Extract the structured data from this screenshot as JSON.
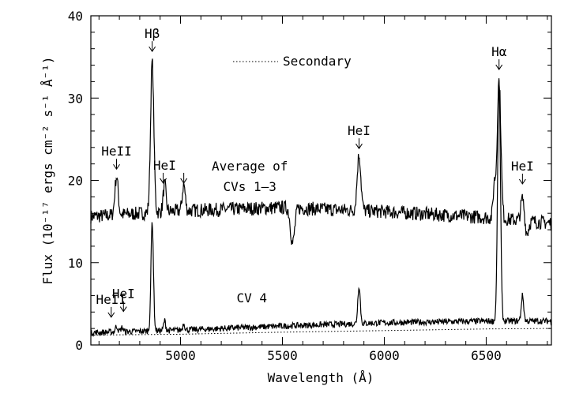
{
  "chart_data": {
    "type": "line",
    "title": "",
    "xlabel": "Wavelength (Å)",
    "ylabel": "Flux (10⁻¹⁷ ergs cm⁻² s⁻¹ Å⁻¹)",
    "xlim": [
      4560,
      6820
    ],
    "ylim": [
      0,
      40
    ],
    "xticks": [
      5000,
      5500,
      6000,
      6500
    ],
    "yticks": [
      0,
      10,
      20,
      30,
      40
    ],
    "grid": false,
    "legend": {
      "position": "top-center",
      "entries": [
        {
          "name": "Secondary",
          "style": "dotted"
        }
      ]
    },
    "continuum": {
      "average": [
        [
          4560,
          15.6
        ],
        [
          5000,
          16.3
        ],
        [
          5500,
          16.7
        ],
        [
          6000,
          16.2
        ],
        [
          6500,
          15.5
        ],
        [
          6820,
          14.8
        ]
      ],
      "cv4": [
        [
          4560,
          1.5
        ],
        [
          5000,
          1.8
        ],
        [
          5500,
          2.3
        ],
        [
          6000,
          2.7
        ],
        [
          6500,
          2.9
        ],
        [
          6820,
          2.9
        ]
      ]
    },
    "series": [
      {
        "name": "Average of CVs 1–3",
        "features": [
          {
            "x": 4686,
            "height": 4.7,
            "width": 8
          },
          {
            "x": 4861,
            "height": 18.3,
            "width": 8
          },
          {
            "x": 4922,
            "height": 3.3,
            "width": 7
          },
          {
            "x": 5016,
            "height": 3.2,
            "width": 7
          },
          {
            "x": 5550,
            "height": -4.3,
            "width": 10
          },
          {
            "x": 5876,
            "height": 6.8,
            "width": 9
          },
          {
            "x": 6540,
            "height": 4.0,
            "width": 6
          },
          {
            "x": 6563,
            "height": 16.8,
            "width": 9
          },
          {
            "x": 6678,
            "height": 2.7,
            "width": 8
          },
          {
            "x": 6700,
            "height": -1.5,
            "width": 8
          }
        ]
      },
      {
        "name": "CV 4",
        "features": [
          {
            "x": 4686,
            "height": 0.7,
            "width": 6
          },
          {
            "x": 4713,
            "height": 0.5,
            "width": 6
          },
          {
            "x": 4861,
            "height": 13.3,
            "width": 6
          },
          {
            "x": 4922,
            "height": 1.2,
            "width": 5
          },
          {
            "x": 5016,
            "height": 0.8,
            "width": 5
          },
          {
            "x": 5876,
            "height": 4.6,
            "width": 6
          },
          {
            "x": 6563,
            "height": 29.0,
            "width": 7
          },
          {
            "x": 6678,
            "height": 3.1,
            "width": 6
          }
        ]
      },
      {
        "name": "Secondary",
        "style": "dotted",
        "points": [
          [
            4560,
            1.2
          ],
          [
            5000,
            1.3
          ],
          [
            5500,
            1.55
          ],
          [
            6000,
            1.75
          ],
          [
            6500,
            1.95
          ],
          [
            6820,
            2.0
          ]
        ]
      }
    ],
    "annotations": [
      {
        "text": "Hβ",
        "x": 4861,
        "y": 37.3,
        "arrow": true
      },
      {
        "text": "Hα",
        "x": 6563,
        "y": 35.1,
        "arrow": true
      },
      {
        "text": "HeII",
        "x": 4686,
        "y": 23.0,
        "arrow": true
      },
      {
        "text": "HeI",
        "x": 4922,
        "y": 21.3,
        "arrow": true,
        "arrow2_x": 5016
      },
      {
        "text": "HeI",
        "x": 5876,
        "y": 25.5,
        "arrow": true
      },
      {
        "text": "HeI",
        "x": 6678,
        "y": 21.2,
        "arrow": true
      },
      {
        "text": "Average of",
        "x": 5340,
        "y": 21.2,
        "arrow": false
      },
      {
        "text": "CVs 1–3",
        "x": 5340,
        "y": 18.7,
        "arrow": false
      },
      {
        "text": "CV 4",
        "x": 5350,
        "y": 5.2,
        "arrow": false
      },
      {
        "text": "HeII",
        "x": 4660,
        "y": 5.0,
        "arrow": true
      },
      {
        "text": "HeI",
        "x": 4720,
        "y": 5.7,
        "arrow": true
      }
    ]
  }
}
